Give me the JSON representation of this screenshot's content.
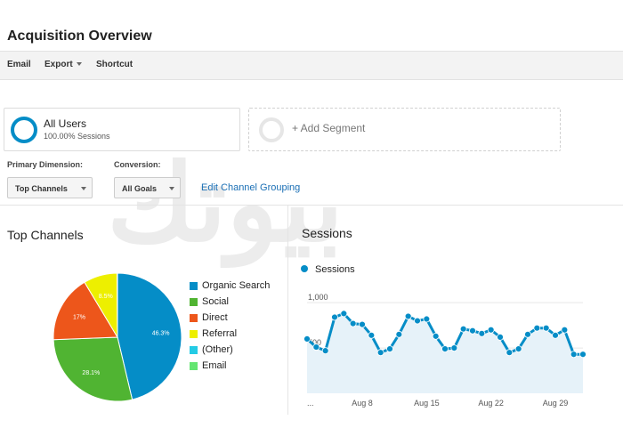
{
  "page": {
    "title": "Acquisition Overview"
  },
  "toolbar": {
    "email": "Email",
    "export": "Export",
    "shortcut": "Shortcut"
  },
  "segments": {
    "current_name": "All Users",
    "current_sub": "100.00% Sessions",
    "add_label": "+ Add Segment"
  },
  "controls": {
    "primary_dimension_label": "Primary Dimension:",
    "primary_dimension_value": "Top Channels",
    "conversion_label": "Conversion:",
    "conversion_value": "All Goals",
    "edit_link": "Edit Channel Grouping"
  },
  "top_channels": {
    "title": "Top Channels",
    "legend": [
      {
        "label": "Organic Search",
        "color": "#058dc7"
      },
      {
        "label": "Social",
        "color": "#50b432"
      },
      {
        "label": "Direct",
        "color": "#ed561b"
      },
      {
        "label": "Referral",
        "color": "#edef00"
      },
      {
        "label": "(Other)",
        "color": "#24cbe5"
      },
      {
        "label": "Email",
        "color": "#64e572"
      }
    ]
  },
  "sessions": {
    "title": "Sessions",
    "legend_label": "Sessions",
    "color": "#058dc7"
  },
  "chart_data": [
    {
      "type": "pie",
      "title": "",
      "categories": [
        "Organic Search",
        "Social",
        "Direct",
        "Referral",
        "(Other)",
        "Email"
      ],
      "values": [
        46.3,
        28.1,
        17,
        8.5,
        0.05,
        0.05
      ],
      "data_labels": [
        "46.3%",
        "28.1%",
        "17%",
        "8.5%",
        "",
        ""
      ],
      "colors": [
        "#058dc7",
        "#50b432",
        "#ed561b",
        "#edef00",
        "#24cbe5",
        "#64e572"
      ]
    },
    {
      "type": "area",
      "title": "",
      "xlabel": "",
      "ylabel": "",
      "series": [
        {
          "name": "Sessions",
          "values": [
            600,
            510,
            470,
            840,
            880,
            770,
            760,
            640,
            450,
            490,
            650,
            850,
            800,
            820,
            630,
            490,
            500,
            710,
            690,
            660,
            700,
            620,
            450,
            490,
            650,
            720,
            720,
            640,
            700,
            430,
            430
          ]
        }
      ],
      "x_tick_labels": [
        "...",
        "Aug 8",
        "Aug 15",
        "Aug 22",
        "Aug 29"
      ],
      "x_tick_index": [
        0,
        6,
        13,
        20,
        27
      ],
      "y_tick_labels": [
        "500",
        "1,000"
      ],
      "y_tick_values": [
        500,
        1000
      ],
      "ylim": [
        0,
        1100
      ],
      "grid": true,
      "legend": "top-left"
    }
  ]
}
